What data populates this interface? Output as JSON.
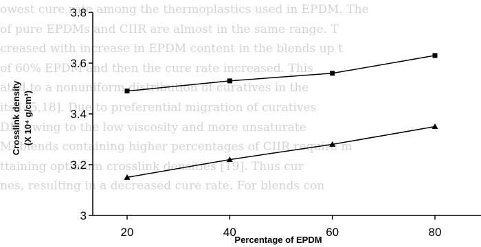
{
  "background_text": [
    "owest cure rate among the thermoplastics used in EPDM. The",
    "of pure EPDMs and CIIR are almost in the same range. T",
    "creased with increase in EPDM content in the blends up t",
    "of 60% EPDM and then the cure rate increased. This",
    "ated to a nonuniform distribution of curatives in the",
    "its [15,18]. Due to preferential migration of curatives",
    "DM owing to the low viscosity and more unsaturate",
    "M, blends containing higher percentages of CIIR require m",
    "ttaining optimum crosslink densities [19]. Thus cur",
    "nes, resulting in a decreased cure rate. For blends con"
  ],
  "chart_data": {
    "type": "line",
    "title": "",
    "xlabel": "Percentage of EPDM",
    "ylabel_line1": "Crosslink density",
    "ylabel_line2": "(X 10⁴ g/cm³)",
    "x": [
      20,
      40,
      60,
      80
    ],
    "xticks": [
      "20",
      "40",
      "60",
      "80"
    ],
    "yticks": [
      "3",
      "3.2",
      "3.4",
      "3.6",
      "3.8"
    ],
    "ylim": [
      3.0,
      3.8
    ],
    "grid": false,
    "legend": "none",
    "series": [
      {
        "values": [
          3.49,
          3.53,
          3.56,
          3.63
        ],
        "marker": "square",
        "color": "#000000"
      },
      {
        "values": [
          3.15,
          3.22,
          3.28,
          3.35
        ],
        "marker": "triangle",
        "color": "#000000"
      }
    ]
  }
}
